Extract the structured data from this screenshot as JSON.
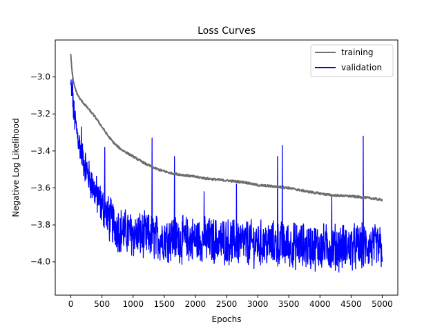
{
  "chart_data": {
    "type": "line",
    "title": "Loss Curves",
    "xlabel": "Epochs",
    "ylabel": "Negative Log Likelihood",
    "xlim": [
      -250,
      5250
    ],
    "ylim": [
      -4.18,
      -2.8
    ],
    "xticks": [
      0,
      500,
      1000,
      1500,
      2000,
      2500,
      3000,
      3500,
      4000,
      4500,
      5000
    ],
    "yticks": [
      -4.0,
      -3.8,
      -3.6,
      -3.4,
      -3.2,
      -3.0
    ],
    "ytick_labels": [
      "−4.0",
      "−3.8",
      "−3.6",
      "−3.4",
      "−3.2",
      "−3.0"
    ],
    "grid": false,
    "legend_position": "top-right",
    "series": [
      {
        "name": "training",
        "color": "#6e6e6e",
        "x": [
          0,
          25,
          50,
          100,
          150,
          200,
          300,
          400,
          500,
          600,
          700,
          800,
          1000,
          1200,
          1400,
          1500,
          1600,
          1800,
          2000,
          2200,
          2500,
          2800,
          3000,
          3200,
          3500,
          3800,
          4000,
          4200,
          4500,
          4800,
          5000
        ],
        "y": [
          -2.88,
          -2.99,
          -3.04,
          -3.09,
          -3.12,
          -3.14,
          -3.18,
          -3.22,
          -3.27,
          -3.32,
          -3.36,
          -3.39,
          -3.43,
          -3.47,
          -3.5,
          -3.51,
          -3.52,
          -3.53,
          -3.54,
          -3.55,
          -3.56,
          -3.57,
          -3.585,
          -3.59,
          -3.6,
          -3.62,
          -3.63,
          -3.64,
          -3.645,
          -3.655,
          -3.665
        ]
      },
      {
        "name": "validation",
        "color": "#0000ff",
        "x": [
          0,
          25,
          50,
          100,
          150,
          200,
          300,
          400,
          500,
          600,
          700,
          800,
          1000,
          1200,
          1400,
          1600,
          1800,
          2000,
          2500,
          3000,
          3500,
          4000,
          4500,
          5000
        ],
        "y": [
          -3.05,
          -3.12,
          -3.2,
          -3.3,
          -3.38,
          -3.45,
          -3.55,
          -3.63,
          -3.7,
          -3.76,
          -3.8,
          -3.83,
          -3.85,
          -3.86,
          -3.87,
          -3.87,
          -3.88,
          -3.88,
          -3.89,
          -3.9,
          -3.91,
          -3.92,
          -3.92,
          -3.92
        ],
        "spikes": [
          {
            "x": 30,
            "y": -2.98
          },
          {
            "x": 170,
            "y": -3.27
          },
          {
            "x": 545,
            "y": -3.38
          },
          {
            "x": 1305,
            "y": -3.33
          },
          {
            "x": 1665,
            "y": -3.43
          },
          {
            "x": 2140,
            "y": -3.62
          },
          {
            "x": 2660,
            "y": -3.58
          },
          {
            "x": 3320,
            "y": -3.43
          },
          {
            "x": 3395,
            "y": -3.37
          },
          {
            "x": 4190,
            "y": -3.65
          },
          {
            "x": 4695,
            "y": -3.32
          }
        ]
      }
    ]
  }
}
